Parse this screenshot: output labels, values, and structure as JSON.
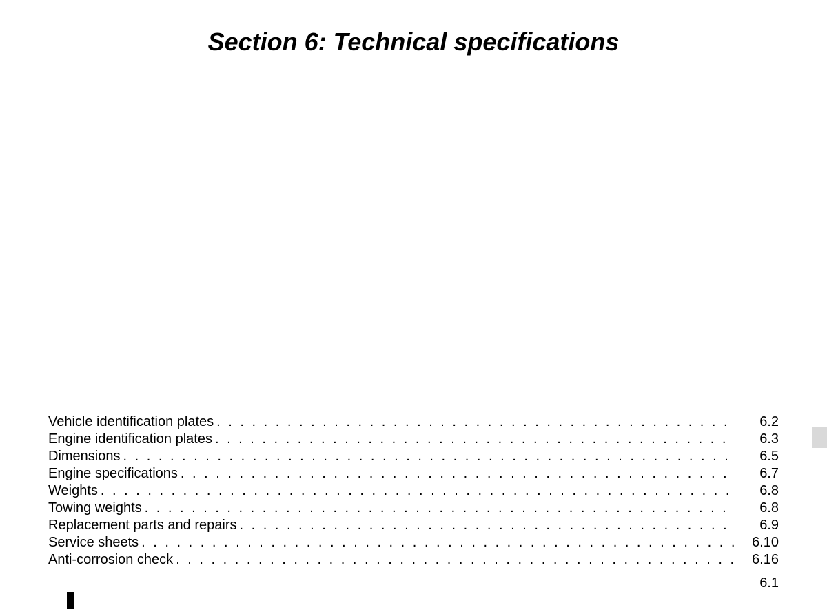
{
  "title": "Section 6: Technical specifications",
  "page_number": "6.1",
  "text_color": "#000000",
  "background_color": "#ffffff",
  "tab_color": "#d9d9d9",
  "title_fontsize": 36,
  "body_fontsize": 20,
  "toc": {
    "items": [
      {
        "label": "Vehicle identification plates",
        "page": "6.2"
      },
      {
        "label": "Engine identification plates",
        "page": "6.3"
      },
      {
        "label": "Dimensions",
        "page": "6.5"
      },
      {
        "label": "Engine specifications",
        "page": "6.7"
      },
      {
        "label": "Weights",
        "page": "6.8"
      },
      {
        "label": "Towing weights",
        "page": "6.8"
      },
      {
        "label": "Replacement parts and repairs",
        "page": "6.9"
      },
      {
        "label": "Service sheets",
        "page": "6.10"
      },
      {
        "label": "Anti-corrosion check",
        "page": "6.16"
      }
    ]
  }
}
